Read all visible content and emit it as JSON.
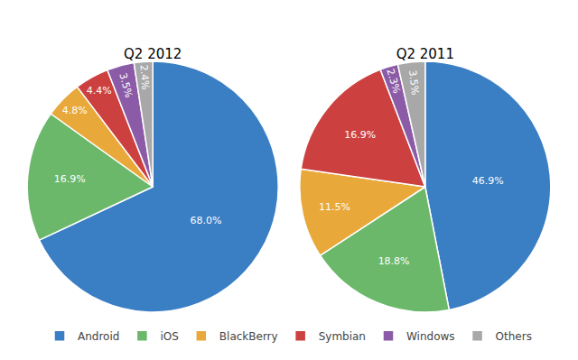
{
  "chart_data": [
    {
      "type": "pie",
      "title": "Q2 2012",
      "categories": [
        "Android",
        "iOS",
        "BlackBerry",
        "Symbian",
        "Windows",
        "Others"
      ],
      "values": [
        68.0,
        16.9,
        4.8,
        4.4,
        3.5,
        2.4
      ],
      "value_labels": [
        "68.0%",
        "16.9%",
        "4.8%",
        "4.4%",
        "3.5%",
        "2.4%"
      ],
      "colors": [
        "#3A7EC4",
        "#6BB86B",
        "#E8A83A",
        "#CC4040",
        "#8B5BA8",
        "#A8A8A8"
      ],
      "data_labels": true,
      "legend": "bottom"
    },
    {
      "type": "pie",
      "title": "Q2 2011",
      "categories": [
        "Android",
        "iOS",
        "BlackBerry",
        "Symbian",
        "Windows",
        "Others"
      ],
      "values": [
        46.9,
        18.8,
        11.5,
        16.9,
        2.3,
        3.5
      ],
      "value_labels": [
        "46.9%",
        "18.8%",
        "11.5%",
        "16.9%",
        "2.3%",
        "3.5%"
      ],
      "colors": [
        "#3A7EC4",
        "#6BB86B",
        "#E8A83A",
        "#CC4040",
        "#8B5BA8",
        "#A8A8A8"
      ],
      "data_labels": true,
      "legend": "bottom"
    }
  ]
}
